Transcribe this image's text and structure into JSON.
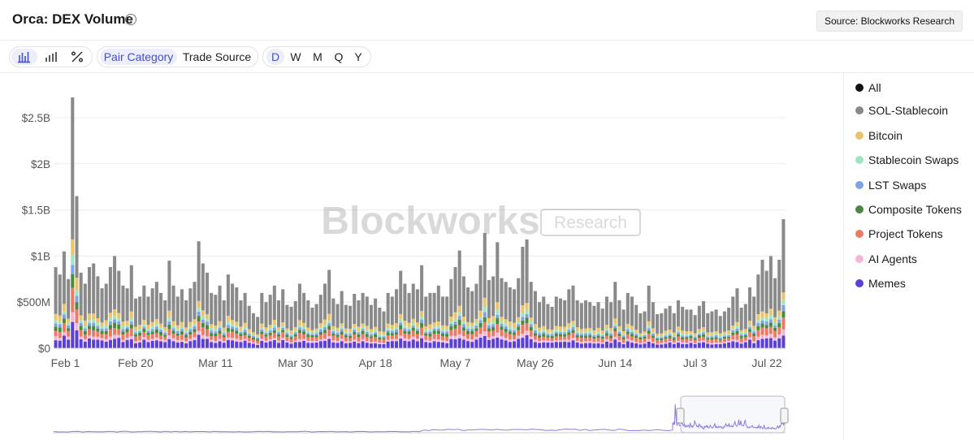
{
  "header": {
    "title": "Orca: DEX Volume",
    "info_icon": "info-icon",
    "source_label": "Source: Blockworks Research"
  },
  "toolbar": {
    "chart_type_icons": [
      "stacked-bar-icon",
      "bar-icon",
      "percent-icon"
    ],
    "group_tabs": [
      "Pair Category",
      "Trade Source"
    ],
    "active_group": "Pair Category",
    "period_tabs": [
      "D",
      "W",
      "M",
      "Q",
      "Y"
    ],
    "active_period": "D"
  },
  "watermark": {
    "brand": "Blockworks",
    "tag": "Research"
  },
  "legend": [
    {
      "label": "All",
      "color": "#111111"
    },
    {
      "label": "SOL-Stablecoin",
      "color": "#8a8a8a"
    },
    {
      "label": "Bitcoin",
      "color": "#e9c46a"
    },
    {
      "label": "Stablecoin Swaps",
      "color": "#9fe3c3"
    },
    {
      "label": "LST Swaps",
      "color": "#7fa4e6"
    },
    {
      "label": "Composite Tokens",
      "color": "#4b8a3c"
    },
    {
      "label": "Project Tokens",
      "color": "#ee7a66"
    },
    {
      "label": "AI Agents",
      "color": "#f2b6d8"
    },
    {
      "label": "Memes",
      "color": "#5b3fd6"
    }
  ],
  "chart_data": {
    "type": "bar",
    "stacked": true,
    "grid": true,
    "legend_position": "right",
    "title": "Orca: DEX Volume",
    "ylim": [
      0,
      2500000000
    ],
    "y_ticks": [
      0,
      500000000,
      1000000000,
      1500000000,
      2000000000,
      2500000000
    ],
    "y_tick_labels": [
      "$0",
      "$500M",
      "$1B",
      "$1.5B",
      "$2B",
      "$2.5B"
    ],
    "x_tick_labels": [
      "Feb 1",
      "Feb 20",
      "Mar 11",
      "Mar 30",
      "Apr 18",
      "May 7",
      "May 26",
      "Jun 14",
      "Jul 3",
      "Jul 22"
    ],
    "x_tick_index": [
      0,
      19,
      38,
      57,
      76,
      95,
      114,
      133,
      152,
      171
    ],
    "x_start": "Feb 1",
    "x_end": "Jul 22",
    "totals": [
      880000000,
      800000000,
      1050000000,
      750000000,
      2720000000,
      1650000000,
      820000000,
      700000000,
      880000000,
      920000000,
      780000000,
      650000000,
      700000000,
      880000000,
      1000000000,
      840000000,
      680000000,
      650000000,
      900000000,
      540000000,
      560000000,
      680000000,
      560000000,
      650000000,
      720000000,
      600000000,
      520000000,
      950000000,
      680000000,
      560000000,
      640000000,
      520000000,
      650000000,
      720000000,
      1160000000,
      920000000,
      820000000,
      600000000,
      580000000,
      680000000,
      520000000,
      800000000,
      700000000,
      660000000,
      520000000,
      600000000,
      460000000,
      380000000,
      340000000,
      600000000,
      500000000,
      580000000,
      680000000,
      520000000,
      640000000,
      470000000,
      450000000,
      510000000,
      700000000,
      600000000,
      520000000,
      440000000,
      480000000,
      580000000,
      700000000,
      850000000,
      540000000,
      480000000,
      620000000,
      470000000,
      460000000,
      590000000,
      520000000,
      600000000,
      560000000,
      470000000,
      540000000,
      440000000,
      400000000,
      600000000,
      560000000,
      640000000,
      840000000,
      700000000,
      600000000,
      700000000,
      640000000,
      900000000,
      560000000,
      600000000,
      600000000,
      680000000,
      560000000,
      560000000,
      750000000,
      880000000,
      1060000000,
      780000000,
      660000000,
      620000000,
      700000000,
      900000000,
      1250000000,
      740000000,
      780000000,
      1150000000,
      760000000,
      720000000,
      660000000,
      640000000,
      760000000,
      1100000000,
      1180000000,
      720000000,
      620000000,
      500000000,
      560000000,
      480000000,
      450000000,
      560000000,
      540000000,
      520000000,
      640000000,
      680000000,
      520000000,
      490000000,
      520000000,
      500000000,
      460000000,
      500000000,
      430000000,
      560000000,
      500000000,
      720000000,
      520000000,
      420000000,
      600000000,
      560000000,
      470000000,
      380000000,
      400000000,
      680000000,
      500000000,
      370000000,
      380000000,
      430000000,
      460000000,
      380000000,
      520000000,
      450000000,
      420000000,
      420000000,
      360000000,
      460000000,
      510000000,
      380000000,
      400000000,
      420000000,
      350000000,
      400000000,
      440000000,
      560000000,
      650000000,
      440000000,
      480000000,
      660000000,
      560000000,
      800000000,
      960000000,
      840000000,
      1000000000,
      760000000,
      960000000,
      1400000000
    ],
    "share_order": [
      "Memes",
      "AI Agents",
      "Project Tokens",
      "Composite Tokens",
      "LST Swaps",
      "Stablecoin Swaps",
      "Bitcoin",
      "SOL-Stablecoin"
    ],
    "shares": [
      0.12,
      0.04,
      0.08,
      0.05,
      0.04,
      0.04,
      0.07,
      0.56
    ],
    "navigator": true
  }
}
